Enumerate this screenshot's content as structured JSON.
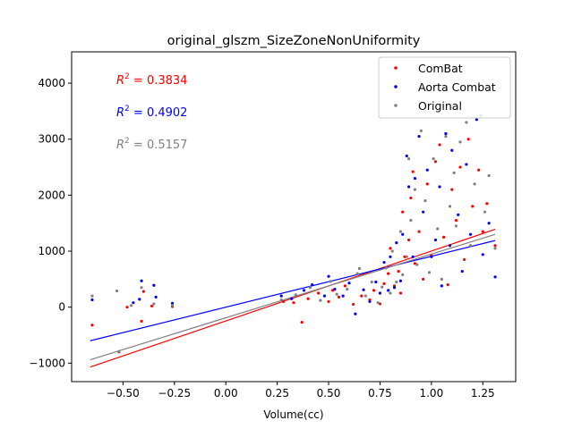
{
  "chart_data": {
    "type": "scatter",
    "title": "original_glszm_SizeZoneNonUniformity",
    "xlabel": "Volume(cc)",
    "ylabel": "",
    "xlim": [
      -0.75,
      1.41
    ],
    "ylim": [
      -1330,
      4560
    ],
    "xticks": [
      -0.5,
      -0.25,
      0.0,
      0.25,
      0.5,
      0.75,
      1.0,
      1.25
    ],
    "xtick_labels": [
      "−0.50",
      "−0.25",
      "0.00",
      "0.25",
      "0.50",
      "0.75",
      "1.00",
      "1.25"
    ],
    "yticks": [
      -1000,
      0,
      1000,
      2000,
      3000,
      4000
    ],
    "ytick_labels": [
      "−1000",
      "0",
      "1000",
      "2000",
      "3000",
      "4000"
    ],
    "legend": {
      "position": "upper right"
    },
    "annotations": [
      {
        "prefix": "R",
        "sup": "2",
        "value": " = 0.3834",
        "color": "#ff0000"
      },
      {
        "prefix": "R",
        "sup": "2",
        "value": " = 0.4902",
        "color": "#0000ff"
      },
      {
        "prefix": "R",
        "sup": "2",
        "value": " = 0.5157",
        "color": "#808080"
      }
    ],
    "series": [
      {
        "name": "ComBat",
        "color": "#ff0000",
        "fit": {
          "x": [
            -0.66,
            1.31
          ],
          "y": [
            -1070,
            1390
          ]
        },
        "points": [
          [
            -0.65,
            -320
          ],
          [
            -0.52,
            -800
          ],
          [
            -0.48,
            0
          ],
          [
            -0.41,
            -250
          ],
          [
            -0.4,
            280
          ],
          [
            -0.36,
            20
          ],
          [
            -0.26,
            10
          ],
          [
            0.28,
            100
          ],
          [
            0.33,
            80
          ],
          [
            0.37,
            -270
          ],
          [
            0.4,
            150
          ],
          [
            0.45,
            250
          ],
          [
            0.5,
            100
          ],
          [
            0.52,
            300
          ],
          [
            0.55,
            180
          ],
          [
            0.58,
            380
          ],
          [
            0.62,
            50
          ],
          [
            0.66,
            200
          ],
          [
            0.7,
            130
          ],
          [
            0.72,
            300
          ],
          [
            0.75,
            60
          ],
          [
            0.77,
            420
          ],
          [
            0.79,
            600
          ],
          [
            0.8,
            1050
          ],
          [
            0.82,
            380
          ],
          [
            0.84,
            640
          ],
          [
            0.85,
            250
          ],
          [
            0.86,
            1700
          ],
          [
            0.87,
            900
          ],
          [
            0.89,
            1200
          ],
          [
            0.9,
            1950
          ],
          [
            0.91,
            2420
          ],
          [
            0.92,
            780
          ],
          [
            0.94,
            1350
          ],
          [
            0.96,
            500
          ],
          [
            0.98,
            2200
          ],
          [
            1.0,
            920
          ],
          [
            1.02,
            2600
          ],
          [
            1.04,
            2900
          ],
          [
            1.06,
            1250
          ],
          [
            1.08,
            400
          ],
          [
            1.1,
            2100
          ],
          [
            1.12,
            1550
          ],
          [
            1.14,
            2500
          ],
          [
            1.16,
            850
          ],
          [
            1.18,
            3000
          ],
          [
            1.2,
            1800
          ],
          [
            1.23,
            2450
          ],
          [
            1.25,
            1350
          ],
          [
            1.27,
            1850
          ],
          [
            1.31,
            1100
          ]
        ]
      },
      {
        "name": "Aorta Combat",
        "color": "#0000ff",
        "fit": {
          "x": [
            -0.66,
            1.31
          ],
          "y": [
            -600,
            1190
          ]
        },
        "points": [
          [
            -0.65,
            130
          ],
          [
            -0.45,
            80
          ],
          [
            -0.42,
            140
          ],
          [
            -0.41,
            470
          ],
          [
            -0.35,
            390
          ],
          [
            -0.34,
            180
          ],
          [
            -0.26,
            70
          ],
          [
            0.27,
            200
          ],
          [
            0.32,
            150
          ],
          [
            0.38,
            300
          ],
          [
            0.42,
            400
          ],
          [
            0.48,
            200
          ],
          [
            0.5,
            550
          ],
          [
            0.53,
            320
          ],
          [
            0.57,
            200
          ],
          [
            0.6,
            430
          ],
          [
            0.63,
            -120
          ],
          [
            0.67,
            310
          ],
          [
            0.7,
            100
          ],
          [
            0.73,
            450
          ],
          [
            0.75,
            250
          ],
          [
            0.77,
            800
          ],
          [
            0.79,
            300
          ],
          [
            0.8,
            900
          ],
          [
            0.82,
            350
          ],
          [
            0.83,
            1150
          ],
          [
            0.85,
            470
          ],
          [
            0.86,
            1300
          ],
          [
            0.88,
            2700
          ],
          [
            0.89,
            2150
          ],
          [
            0.91,
            900
          ],
          [
            0.92,
            2300
          ],
          [
            0.94,
            3050
          ],
          [
            0.96,
            1700
          ],
          [
            0.98,
            2450
          ],
          [
            1.0,
            900
          ],
          [
            1.02,
            1200
          ],
          [
            1.04,
            2150
          ],
          [
            1.05,
            380
          ],
          [
            1.07,
            3100
          ],
          [
            1.09,
            1100
          ],
          [
            1.1,
            2800
          ],
          [
            1.13,
            1650
          ],
          [
            1.15,
            640
          ],
          [
            1.17,
            2550
          ],
          [
            1.19,
            1300
          ],
          [
            1.22,
            3350
          ],
          [
            1.25,
            940
          ],
          [
            1.28,
            1500
          ],
          [
            1.31,
            540
          ]
        ]
      },
      {
        "name": "Original",
        "color": "#808080",
        "fit": {
          "x": [
            -0.66,
            1.31
          ],
          "y": [
            -940,
            1300
          ]
        },
        "points": [
          [
            -0.65,
            200
          ],
          [
            -0.53,
            290
          ],
          [
            -0.52,
            -790
          ],
          [
            -0.46,
            30
          ],
          [
            -0.41,
            350
          ],
          [
            -0.35,
            60
          ],
          [
            -0.26,
            30
          ],
          [
            0.27,
            130
          ],
          [
            0.34,
            220
          ],
          [
            0.41,
            350
          ],
          [
            0.46,
            120
          ],
          [
            0.51,
            460
          ],
          [
            0.54,
            230
          ],
          [
            0.59,
            320
          ],
          [
            0.64,
            600
          ],
          [
            0.65,
            690
          ],
          [
            0.68,
            200
          ],
          [
            0.71,
            450
          ],
          [
            0.74,
            80
          ],
          [
            0.76,
            360
          ],
          [
            0.78,
            700
          ],
          [
            0.8,
            250
          ],
          [
            0.81,
            1000
          ],
          [
            0.83,
            450
          ],
          [
            0.85,
            1350
          ],
          [
            0.86,
            580
          ],
          [
            0.88,
            900
          ],
          [
            0.89,
            2650
          ],
          [
            0.9,
            1550
          ],
          [
            0.92,
            2100
          ],
          [
            0.93,
            760
          ],
          [
            0.95,
            3150
          ],
          [
            0.97,
            1900
          ],
          [
            0.99,
            620
          ],
          [
            1.01,
            2650
          ],
          [
            1.03,
            1400
          ],
          [
            1.05,
            500
          ],
          [
            1.07,
            3050
          ],
          [
            1.09,
            1800
          ],
          [
            1.11,
            2400
          ],
          [
            1.12,
            1450
          ],
          [
            1.14,
            2950
          ],
          [
            1.17,
            3300
          ],
          [
            1.19,
            1100
          ],
          [
            1.21,
            2200
          ],
          [
            1.24,
            3420
          ],
          [
            1.26,
            1700
          ],
          [
            1.28,
            2350
          ],
          [
            1.31,
            1050
          ]
        ]
      }
    ]
  }
}
